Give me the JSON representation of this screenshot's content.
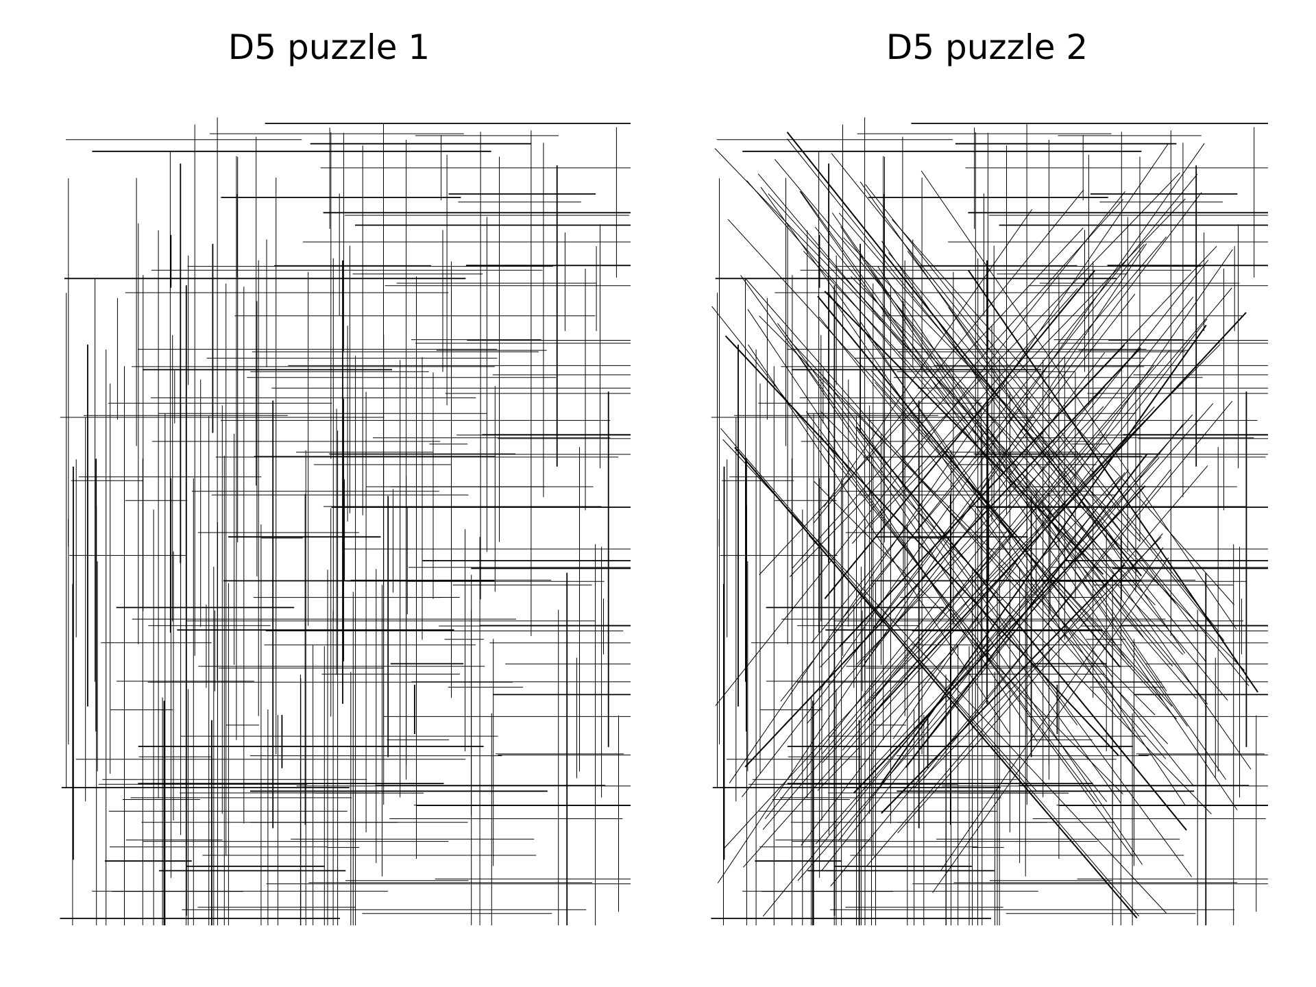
{
  "panels": [
    {
      "title": "D5 puzzle 1",
      "diagonal_lines": false
    },
    {
      "title": "D5 puzzle 2",
      "diagonal_lines": true
    }
  ],
  "colors": {
    "line": "#000000",
    "background": "#ffffff"
  }
}
